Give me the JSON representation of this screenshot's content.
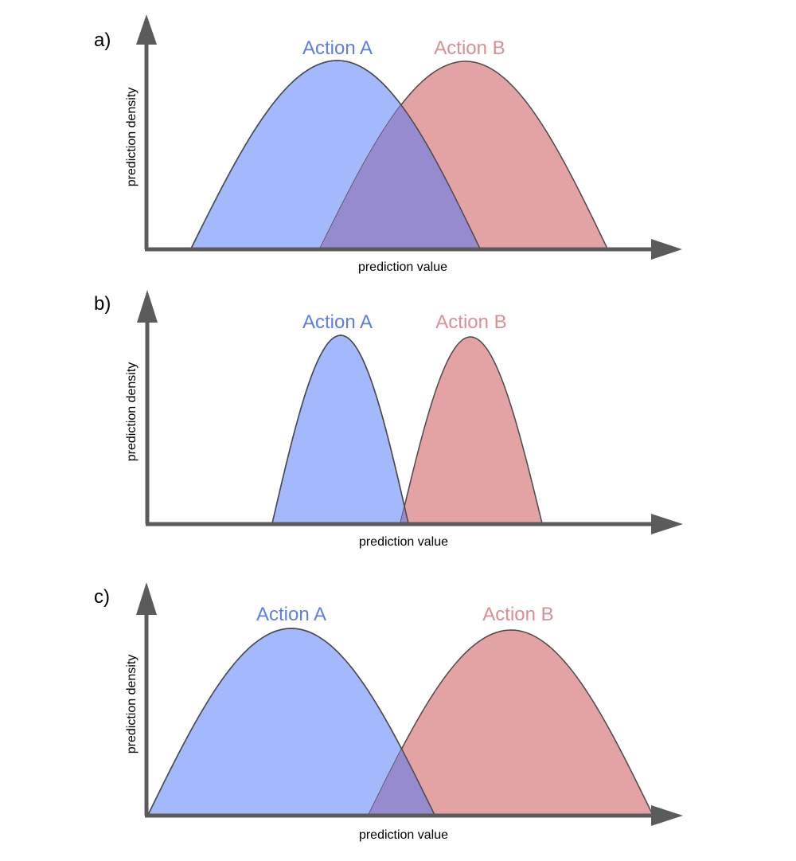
{
  "colors": {
    "action_a_fill": "#a4b9fb",
    "action_b_fill": "#e3a2a4",
    "overlap_fill": "#968bcf",
    "action_a_label": "#5b7fe6",
    "action_b_label": "#d98f93",
    "axis": "#5b5b5b",
    "outline": "#4a4a4a"
  },
  "panels": [
    {
      "letter": "a)",
      "x_axis_label": "prediction value",
      "y_axis_label": "prediction density",
      "curve_a_label": "Action A",
      "curve_b_label": "Action B"
    },
    {
      "letter": "b)",
      "x_axis_label": "prediction value",
      "y_axis_label": "prediction density",
      "curve_a_label": "Action A",
      "curve_b_label": "Action B"
    },
    {
      "letter": "c)",
      "x_axis_label": "prediction value",
      "y_axis_label": "prediction density",
      "curve_a_label": "Action A",
      "curve_b_label": "Action B"
    }
  ]
}
